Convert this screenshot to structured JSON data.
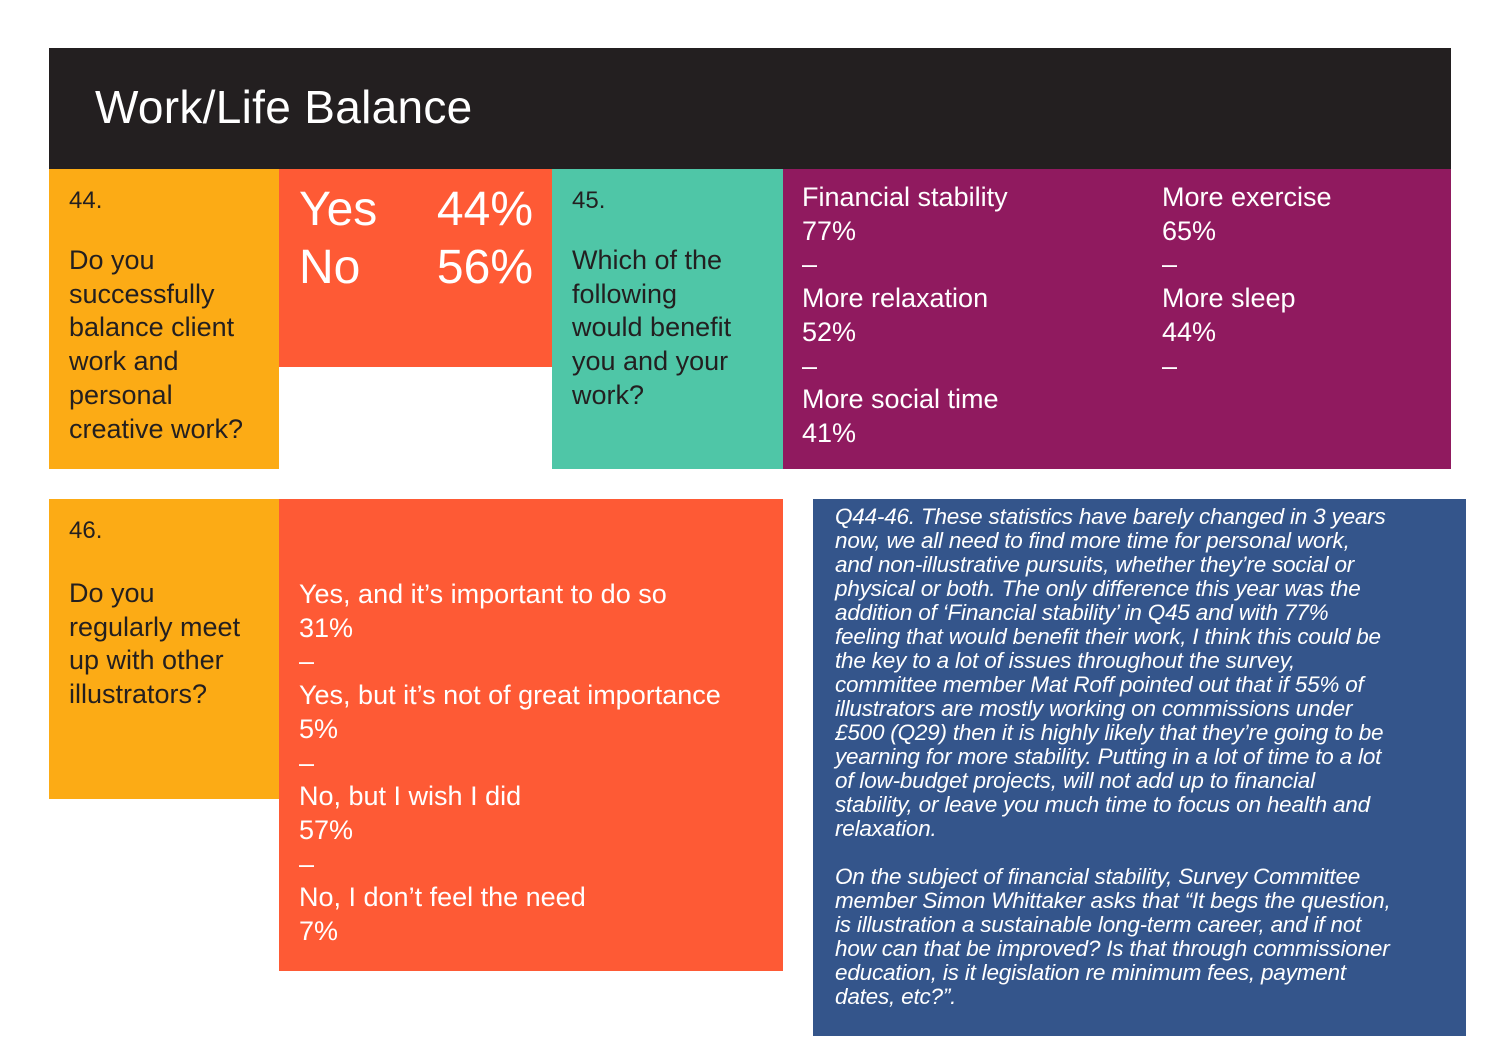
{
  "header": {
    "title": "Work/Life Balance"
  },
  "q44": {
    "number": "44.",
    "question_lines": [
      "Do you",
      "successfully",
      "balance client",
      "work and",
      "personal",
      "creative work?"
    ],
    "answers": [
      {
        "label": "Yes",
        "value": "44%"
      },
      {
        "label": "No",
        "value": "56%"
      }
    ]
  },
  "q45": {
    "number": "45.",
    "question_lines": [
      "Which of the",
      "following",
      "would benefit",
      "you and your",
      "work?"
    ],
    "col1": [
      {
        "label": "Financial stability",
        "value": "77%"
      },
      {
        "label": "More relaxation",
        "value": "52%"
      },
      {
        "label": "More social time",
        "value": "41%"
      }
    ],
    "col2": [
      {
        "label": "More exercise",
        "value": "65%"
      },
      {
        "label": "More sleep",
        "value": "44%"
      }
    ],
    "separator": "–"
  },
  "q46": {
    "number": "46.",
    "question_lines": [
      "Do you",
      "regularly meet",
      "up with other",
      "illustrators?"
    ],
    "options": [
      {
        "label": "Yes, and it’s important to do so",
        "value": "31%"
      },
      {
        "label": "Yes, but it’s not of great importance",
        "value": "5%"
      },
      {
        "label": "No, but I wish I did",
        "value": "57%"
      },
      {
        "label": "No, I don’t feel the need",
        "value": "7%"
      }
    ]
  },
  "commentary": {
    "paragraph1_lines": [
      "Q44-46. These statistics have barely changed in 3 years",
      "now, we all need to find more time for personal work,",
      "and non-illustrative pursuits, whether they’re social or",
      "physical or both. The only difference this year was the",
      "addition of ‘Financial stability’ in Q45 and with 77%",
      "feeling that would benefit their work, I think this could be",
      "the key to a lot of issues throughout the survey,",
      "committee member Mat Roff pointed out that if 55% of",
      "illustrators are mostly working on commissions under",
      "£500 (Q29) then it is highly likely that they’re going to be",
      "yearning for more stability. Putting in a lot of time to a lot",
      "of low-budget projects, will not add up to financial",
      "stability, or leave you much time to focus on health and",
      "relaxation."
    ],
    "paragraph2_lines": [
      "On the subject of financial stability, Survey Committee",
      "member Simon Whittaker asks that “It begs the question,",
      "is illustration a sustainable long-term career, and if not",
      "how can that be improved? Is that through commissioner",
      "education, is it legislation re minimum fees, payment",
      "dates, etc?”."
    ]
  },
  "colors": {
    "header": "#231f20",
    "yellow": "#fcab15",
    "orange": "#fe5a35",
    "teal": "#4fc6a7",
    "purple": "#901a5f",
    "blue": "#34558b"
  }
}
